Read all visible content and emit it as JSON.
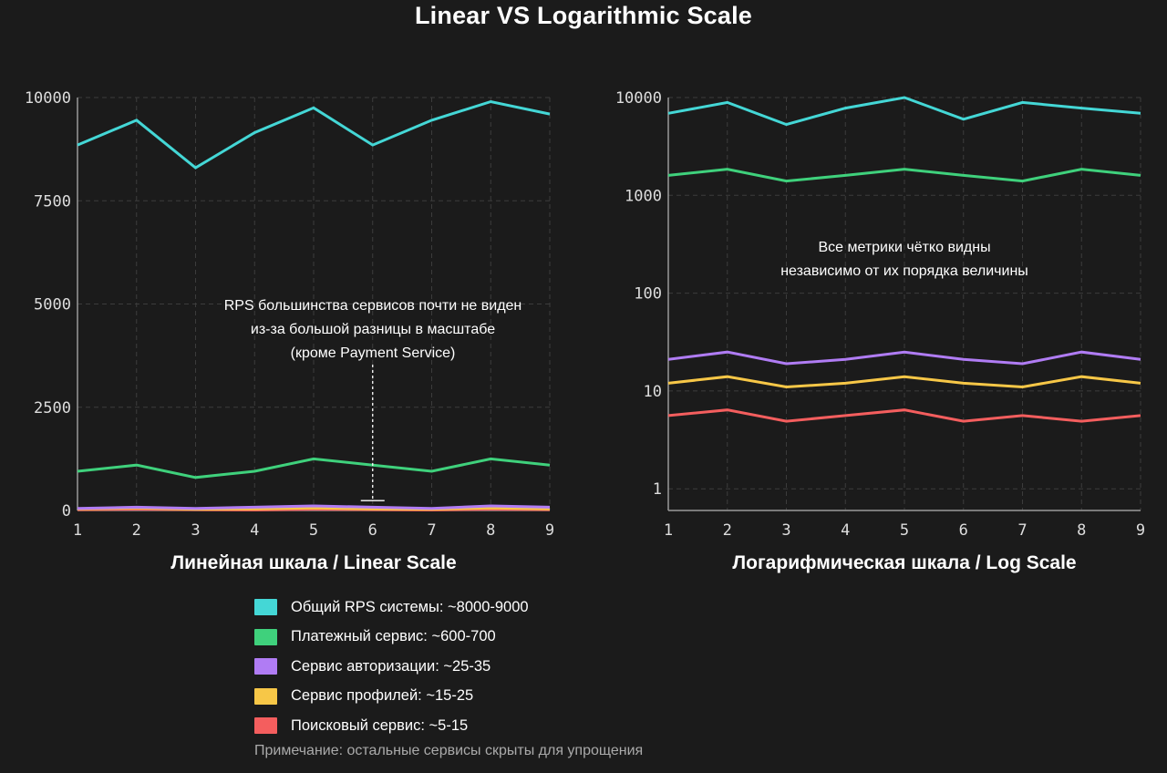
{
  "title": "Linear VS Logarithmic Scale",
  "colors": {
    "background": "#1b1b1b",
    "axis": "#9a9a9a",
    "grid": "#3c3c3c",
    "text": "#ffffff"
  },
  "legend": {
    "items": [
      {
        "label": "Общий RPS системы: ~8000-9000",
        "color": "#44d7d6"
      },
      {
        "label": "Платежный сервис: ~600-700",
        "color": "#3fd17c"
      },
      {
        "label": "Сервис авторизации: ~25-35",
        "color": "#b07cf4"
      },
      {
        "label": "Сервис профилей: ~15-25",
        "color": "#f7c747"
      },
      {
        "label": "Поисковый сервис: ~5-15",
        "color": "#f45e5e"
      }
    ],
    "note": "Примечание: остальные сервисы скрыты для упрощения"
  },
  "chart_data": [
    {
      "type": "line",
      "title": "Линейная шкала / Linear Scale",
      "xlabel": "",
      "ylabel": "",
      "x": [
        1,
        2,
        3,
        4,
        5,
        6,
        7,
        8,
        9
      ],
      "xlim": [
        1,
        9
      ],
      "ylim": [
        0,
        10000
      ],
      "yscale": "linear",
      "yticks": [
        0,
        2500,
        5000,
        7500,
        10000
      ],
      "yticklabels": [
        "0",
        "2500",
        "5000",
        "7500",
        "10000"
      ],
      "grid": true,
      "annotation": {
        "lines": [
          "RPS большинства сервисов почти не виден",
          "из-за большой разницы в масштабе",
          "(кроме Payment Service)"
        ],
        "arrow_to": [
          6.0,
          150
        ]
      },
      "series": [
        {
          "name": "Общий RPS системы",
          "color": "#44d7d6",
          "values": [
            8850,
            9450,
            8300,
            9150,
            9750,
            8850,
            9450,
            9900,
            9600
          ]
        },
        {
          "name": "Платежный сервис",
          "color": "#3fd17c",
          "values": [
            950,
            1100,
            800,
            950,
            1250,
            1100,
            950,
            1250,
            1100
          ]
        },
        {
          "name": "Сервис авторизации",
          "color": "#b07cf4",
          "values": [
            50,
            80,
            50,
            80,
            110,
            80,
            50,
            110,
            80
          ]
        },
        {
          "name": "Сервис профилей",
          "color": "#f7c747",
          "values": [
            40,
            60,
            30,
            40,
            60,
            40,
            30,
            60,
            40
          ]
        },
        {
          "name": "Поисковый сервис",
          "color": "#f45e5e",
          "values": [
            20,
            30,
            20,
            10,
            30,
            20,
            10,
            30,
            20
          ]
        }
      ]
    },
    {
      "type": "line",
      "title": "Логарифмическая шкала / Log Scale",
      "xlabel": "",
      "ylabel": "",
      "x": [
        1,
        2,
        3,
        4,
        5,
        6,
        7,
        8,
        9
      ],
      "xlim": [
        1,
        9
      ],
      "ylim": [
        0.6,
        10000
      ],
      "yscale": "log",
      "yticks": [
        1,
        10,
        100,
        1000,
        10000
      ],
      "yticklabels": [
        "1",
        "10",
        "100",
        "1000",
        "10000"
      ],
      "grid": true,
      "annotation": {
        "lines": [
          "Все метрики чётко видны",
          "независимо от их порядка величины"
        ]
      },
      "series": [
        {
          "name": "Общий RPS системы",
          "color": "#44d7d6",
          "values": [
            6900,
            8900,
            5300,
            7800,
            10000,
            6000,
            8900,
            7800,
            6900
          ]
        },
        {
          "name": "Платежный сервис",
          "color": "#3fd17c",
          "values": [
            1600,
            1850,
            1400,
            1600,
            1850,
            1600,
            1400,
            1850,
            1600
          ]
        },
        {
          "name": "Сервис авторизации",
          "color": "#b07cf4",
          "values": [
            21,
            25,
            19,
            21,
            25,
            21,
            19,
            25,
            21
          ]
        },
        {
          "name": "Сервис профилей",
          "color": "#f7c747",
          "values": [
            12,
            14,
            11,
            12,
            14,
            12,
            11,
            14,
            12
          ]
        },
        {
          "name": "Поисковый сервис",
          "color": "#f45e5e",
          "values": [
            5.6,
            6.4,
            4.9,
            5.6,
            6.4,
            4.9,
            5.6,
            4.9,
            5.6
          ]
        }
      ]
    }
  ]
}
